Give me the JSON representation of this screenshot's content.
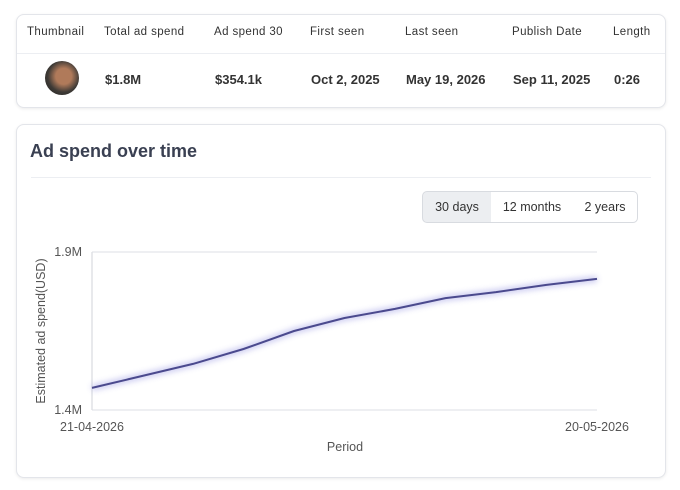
{
  "table": {
    "headers": [
      "Thumbnail",
      "Total ad spend",
      "Ad spend 30",
      "First seen",
      "Last seen",
      "Publish Date",
      "Length"
    ],
    "row": [
      "$1.8M",
      "$354.1k",
      "Oct 2, 2025",
      "May 19, 2026",
      "Sep 11, 2025",
      "0:26"
    ]
  },
  "panel": {
    "title": "Ad spend over time",
    "ranges": [
      "30 days",
      "12 months",
      "2 years"
    ],
    "active_range": "30 days"
  },
  "chart": {
    "type": "line",
    "y_label": "Estimated ad spend(USD)",
    "x_label": "Period",
    "categories": [
      "21-04-2026",
      null,
      null,
      null,
      null,
      null,
      null,
      null,
      null,
      null,
      "20-05-2026"
    ],
    "values": [
      1470000,
      1508000,
      1546000,
      1593000,
      1650000,
      1691000,
      1720000,
      1754000,
      1773000,
      1796000,
      1815000
    ],
    "color": "#4b4a8e",
    "ylim": [
      1400000,
      1900000
    ],
    "yticks": [
      {
        "value": 1400000,
        "label": "1.4M"
      },
      {
        "value": 1900000,
        "label": "1.9M"
      }
    ],
    "grid": true
  }
}
